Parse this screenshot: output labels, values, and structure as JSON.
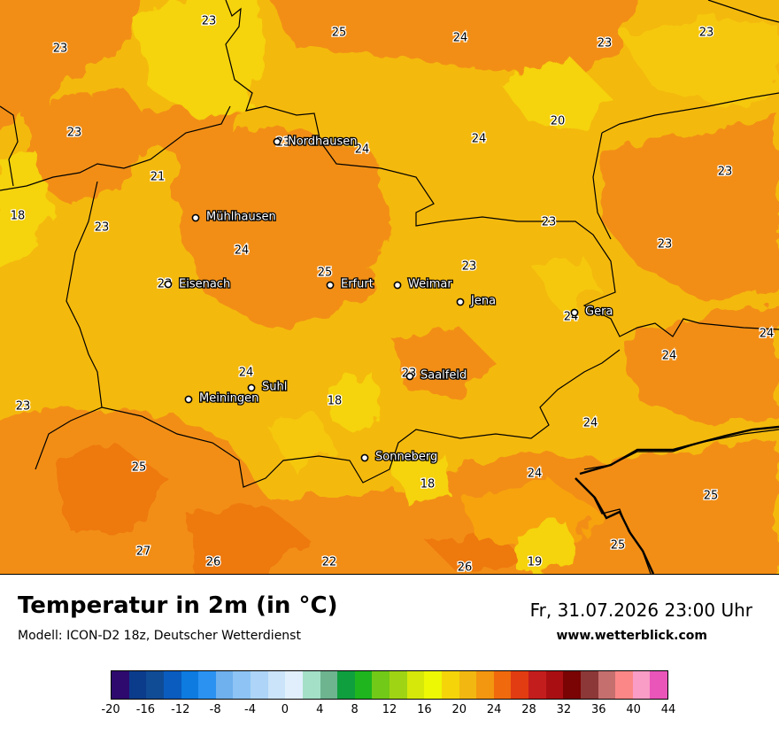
{
  "title": "Temperatur in 2m (in °C)",
  "model": "Modell: ICON-D2 18z, Deutscher Wetterdienst",
  "datetime": "Fr, 31.07.2026 23:00 Uhr",
  "website": "www.wetterblick.com",
  "legend": {
    "colors": [
      "#2e0a6e",
      "#0b3c8c",
      "#104b96",
      "#0a5cbf",
      "#0e7be0",
      "#2b92f2",
      "#6fb0ee",
      "#8ec4f5",
      "#aed5f7",
      "#cbe4fa",
      "#e1effc",
      "#a4e0c8",
      "#6db48f",
      "#0f9f3f",
      "#1eb51e",
      "#72c918",
      "#9fd414",
      "#d5e80a",
      "#edf805",
      "#f5d40a",
      "#f2b811",
      "#f39610",
      "#f06a0d",
      "#e23c12",
      "#c41d1d",
      "#a90f12",
      "#7a0303",
      "#8d3838",
      "#c56f6f",
      "#fc8787",
      "#f99cc6",
      "#ea55ba"
    ],
    "labels": [
      "-20",
      "-16",
      "-12",
      "-8",
      "-4",
      "0",
      "4",
      "8",
      "12",
      "16",
      "20",
      "24",
      "28",
      "32",
      "36",
      "40",
      "44"
    ]
  },
  "map": {
    "cities": [
      {
        "name": "Nordhausen"
      },
      {
        "name": "Mühlhausen"
      },
      {
        "name": "Eisenach"
      },
      {
        "name": "Erfurt"
      },
      {
        "name": "Weimar"
      },
      {
        "name": "Jena"
      },
      {
        "name": "Gera"
      },
      {
        "name": "Suhl"
      },
      {
        "name": "Meiningen"
      },
      {
        "name": "Saalfeld"
      },
      {
        "name": "Sonneberg"
      }
    ],
    "values": [
      "23",
      "25",
      "24",
      "23",
      "23",
      "23",
      "24",
      "24",
      "23",
      "20",
      "23",
      "21",
      "23",
      "18",
      "23",
      "24",
      "25",
      "23",
      "23",
      "23",
      "23",
      "24",
      "24",
      "24",
      "24",
      "23",
      "18",
      "23",
      "24",
      "25",
      "18",
      "24",
      "25",
      "27",
      "26",
      "22",
      "26",
      "19",
      "25"
    ]
  }
}
